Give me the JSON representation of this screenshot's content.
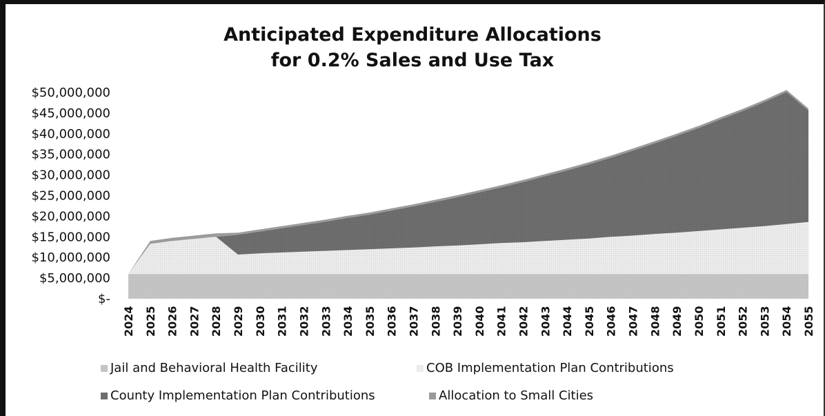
{
  "chart_data": {
    "type": "area",
    "stacked": true,
    "title": [
      "Anticipated Expenditure Allocations",
      "for 0.2% Sales and Use Tax"
    ],
    "x": [
      "2024",
      "2025",
      "2026",
      "2027",
      "2028",
      "2029",
      "2030",
      "2031",
      "2032",
      "2033",
      "2034",
      "2035",
      "2036",
      "2037",
      "2038",
      "2039",
      "2040",
      "2041",
      "2042",
      "2043",
      "2044",
      "2045",
      "2046",
      "2047",
      "2048",
      "2049",
      "2050",
      "2051",
      "2052",
      "2053",
      "2054",
      "2055"
    ],
    "yticks": [
      "$-",
      "$5,000,000",
      "$10,000,000",
      "$15,000,000",
      "$20,000,000",
      "$25,000,000",
      "$30,000,000",
      "$35,000,000",
      "$40,000,000",
      "$45,000,000",
      "$50,000,000"
    ],
    "ylim": [
      0,
      50000000
    ],
    "legend_position": "bottom",
    "series": [
      {
        "name": "Jail and Behavioral Health Facility",
        "color": "#c4c4c4",
        "values": [
          6000000,
          6000000,
          6000000,
          6000000,
          6000000,
          6000000,
          6000000,
          6000000,
          6000000,
          6000000,
          6000000,
          6000000,
          6000000,
          6000000,
          6000000,
          6000000,
          6000000,
          6000000,
          6000000,
          6000000,
          6000000,
          6000000,
          6000000,
          6000000,
          6000000,
          6000000,
          6000000,
          6000000,
          6000000,
          6000000,
          6000000,
          6000000
        ]
      },
      {
        "name": "COB Implementation Plan Contributions",
        "color": "#ececec",
        "values": [
          0,
          7300000,
          8000000,
          8500000,
          9000000,
          4700000,
          5000000,
          5200000,
          5400000,
          5600000,
          5800000,
          6000000,
          6200000,
          6400000,
          6700000,
          6900000,
          7200000,
          7500000,
          7700000,
          8000000,
          8300000,
          8600000,
          9000000,
          9300000,
          9700000,
          10000000,
          10400000,
          10800000,
          11200000,
          11600000,
          12100000,
          12600000
        ]
      },
      {
        "name": "County Implementation Plan Contributions",
        "color": "#6e6e6e",
        "values": [
          0,
          0,
          0,
          0,
          0,
          4800000,
          5300000,
          5900000,
          6500000,
          7100000,
          7800000,
          8400000,
          9200000,
          10000000,
          10800000,
          11700000,
          12600000,
          13500000,
          14600000,
          15700000,
          16800000,
          18000000,
          19200000,
          20600000,
          22000000,
          23500000,
          25000000,
          26700000,
          28300000,
          30100000,
          32000000,
          27000000
        ]
      },
      {
        "name": "Allocation to Small Cities",
        "color": "#9a9a9a",
        "values": [
          0,
          700000,
          750000,
          800000,
          850000,
          500000,
          500000,
          500000,
          500000,
          500000,
          500000,
          500000,
          500000,
          500000,
          500000,
          500000,
          500000,
          500000,
          500000,
          500000,
          500000,
          500000,
          500000,
          500000,
          500000,
          500000,
          500000,
          500000,
          500000,
          500000,
          500000,
          500000
        ]
      }
    ]
  }
}
